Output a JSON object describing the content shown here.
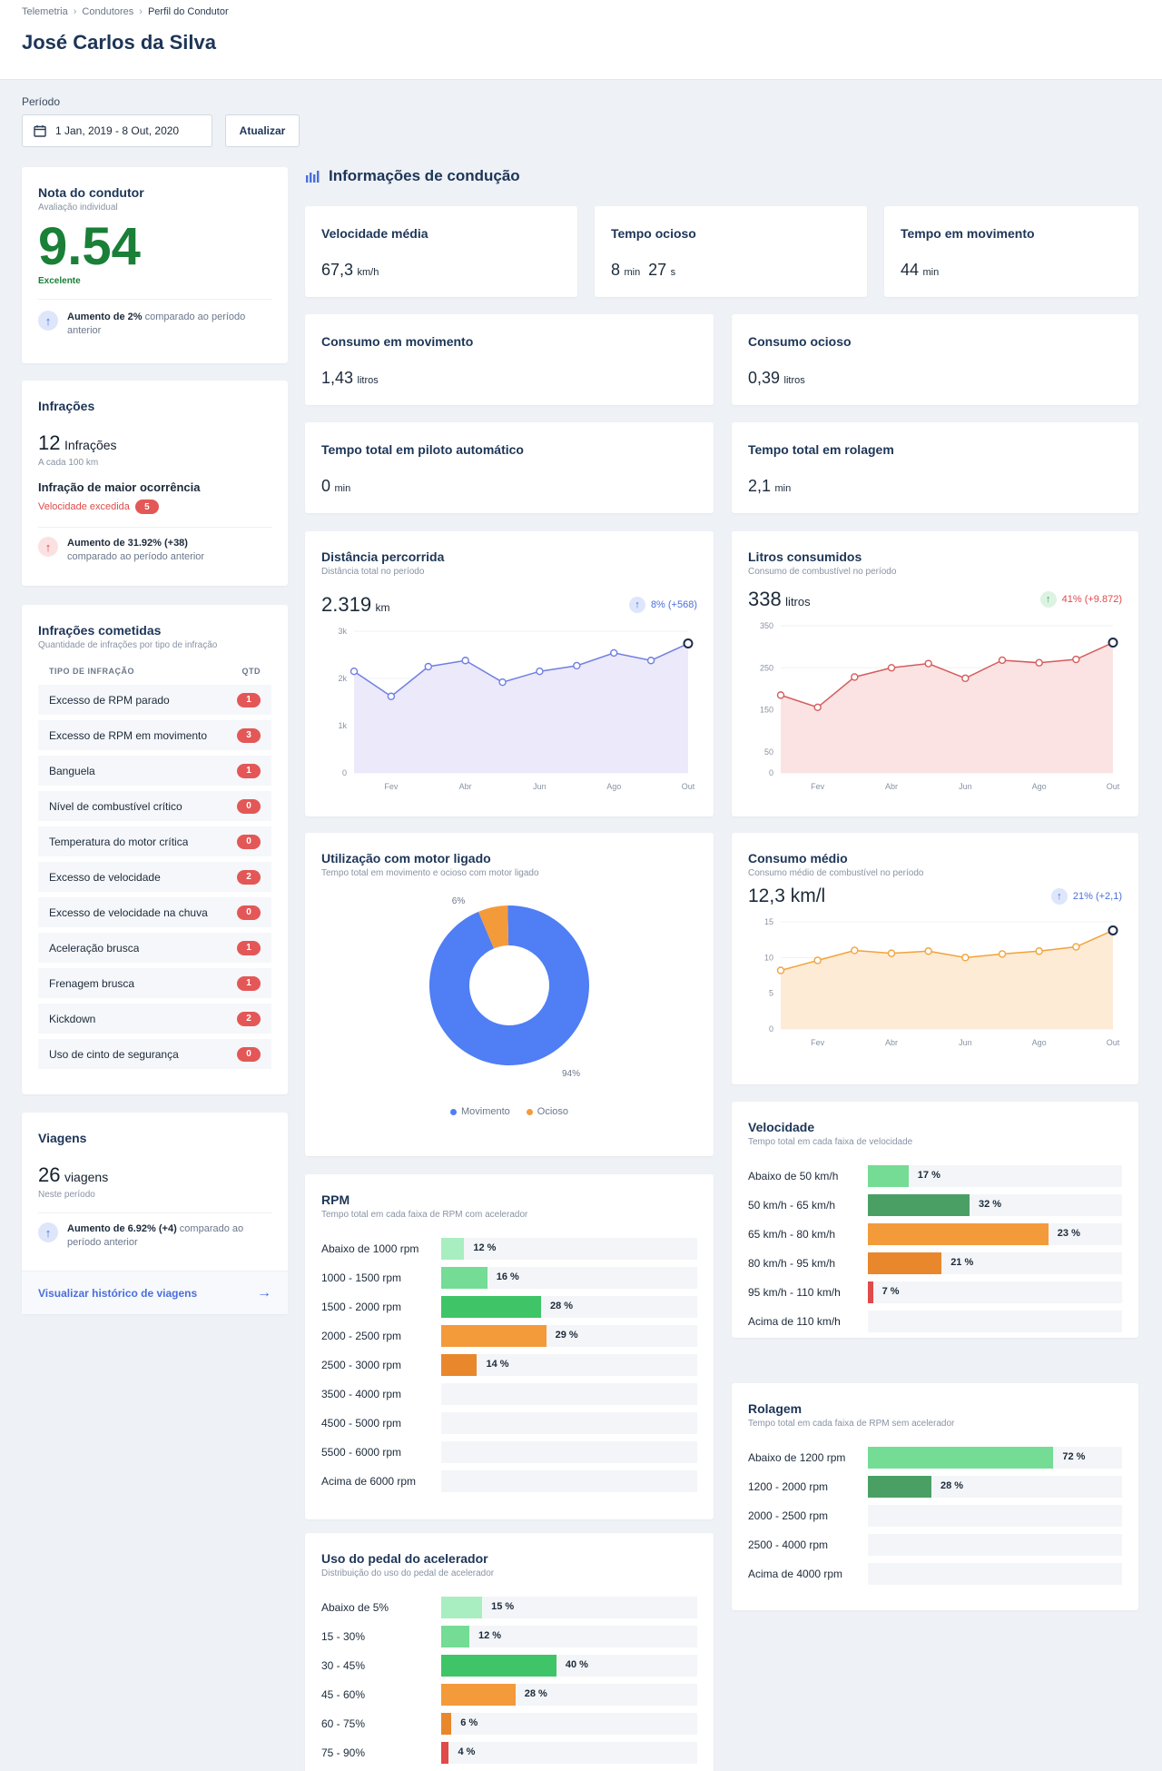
{
  "breadcrumb": [
    "Telemetria",
    "Condutores",
    "Perfil do Condutor"
  ],
  "title": "José Carlos da Silva",
  "period": {
    "label": "Período",
    "value": "1 Jan, 2019 - 8 Out, 2020",
    "update_label": "Atualizar"
  },
  "score": {
    "title": "Nota do condutor",
    "subtitle": "Avaliação individual",
    "value": "9.54",
    "rating": "Excelente",
    "note_bold": "Aumento de 2%",
    "note_rest": "comparado ao período anterior",
    "color": "#1a7f37"
  },
  "infractions": {
    "title": "Infrações",
    "count": "12",
    "unit": "Infrações",
    "per": "A cada 100 km",
    "top_title": "Infração de maior ocorrência",
    "top_name": "Velocidade excedida",
    "top_count": "5",
    "note_bold": "Aumento de 31.92% (+38)",
    "note_rest": "comparado ao período anterior"
  },
  "committed": {
    "title": "Infrações cometidas",
    "subtitle": "Quantidade de infrações por tipo de infração",
    "col_type": "TIPO DE INFRAÇÃO",
    "col_qty": "QTD",
    "rows": [
      {
        "name": "Excesso de RPM parado",
        "qty": "1"
      },
      {
        "name": "Excesso de RPM em movimento",
        "qty": "3"
      },
      {
        "name": "Banguela",
        "qty": "1"
      },
      {
        "name": "Nível de combustível crítico",
        "qty": "0"
      },
      {
        "name": "Temperatura do motor crítica",
        "qty": "0"
      },
      {
        "name": "Excesso de velocidade",
        "qty": "2"
      },
      {
        "name": "Excesso de velocidade na chuva",
        "qty": "0"
      },
      {
        "name": "Aceleração brusca",
        "qty": "1"
      },
      {
        "name": "Frenagem brusca",
        "qty": "1"
      },
      {
        "name": "Kickdown",
        "qty": "2"
      },
      {
        "name": "Uso de cinto de segurança",
        "qty": "0"
      }
    ]
  },
  "trips": {
    "title": "Viagens",
    "count": "26",
    "unit": "viagens",
    "sub": "Neste período",
    "note_bold": "Aumento de 6.92% (+4)",
    "note_rest": "comparado ao período anterior",
    "link": "Visualizar histórico de viagens"
  },
  "driving_info": {
    "title": "Informações de condução",
    "metrics": {
      "avg_speed": {
        "label": "Velocidade média",
        "value": "67,3",
        "unit": "km/h"
      },
      "idle_time": {
        "label": "Tempo ocioso",
        "v1": "8",
        "u1": "min",
        "v2": "27",
        "u2": "s"
      },
      "moving_time": {
        "label": "Tempo em movimento",
        "value": "44",
        "unit": "min"
      },
      "moving_consumption": {
        "label": "Consumo em movimento",
        "value": "1,43",
        "unit": "litros"
      },
      "idle_consumption": {
        "label": "Consumo ocioso",
        "value": "0,39",
        "unit": "litros"
      },
      "autopilot": {
        "label": "Tempo total em piloto automático",
        "value": "0",
        "unit": "min"
      },
      "coasting": {
        "label": "Tempo total em rolagem",
        "value": "2,1",
        "unit": "min"
      }
    }
  },
  "distance": {
    "title": "Distância percorrida",
    "subtitle": "Distância total no período",
    "value": "2.319",
    "unit": "km",
    "trend": "8% (+568)"
  },
  "liters": {
    "title": "Litros consumidos",
    "subtitle": "Consumo de combustível no período",
    "value": "338",
    "unit": "litros",
    "trend": "41% (+9.872)"
  },
  "engine_usage": {
    "title": "Utilização com motor ligado",
    "subtitle": "Tempo total em movimento e ocioso com motor ligado",
    "legend_moving": "Movimento",
    "legend_idle": "Ocioso"
  },
  "avg_consumption": {
    "title": "Consumo médio",
    "subtitle": "Consumo médio de combustível no período",
    "value": "12,3 km/l",
    "trend": "21% (+2,1)"
  },
  "speed_bands": {
    "title": "Velocidade",
    "subtitle": "Tempo total em cada faixa de velocidade"
  },
  "rpm_bands": {
    "title": "RPM",
    "subtitle": "Tempo total em cada faixa de RPM com acelerador"
  },
  "coasting_bands": {
    "title": "Rolagem",
    "subtitle": "Tempo total em cada faixa de RPM sem acelerador"
  },
  "pedal_bands": {
    "title": "Uso do pedal do acelerador",
    "subtitle": "Distribuição do uso do pedal de acelerador"
  },
  "chart_data": [
    {
      "type": "line",
      "name": "distance",
      "x": [
        "Jan",
        "Fev",
        "Mar",
        "Abr",
        "Mai",
        "Jun",
        "Jul",
        "Ago",
        "Set",
        "Out"
      ],
      "x_tick_labels": [
        "Fev",
        "Abr",
        "Jun",
        "Ago",
        "Out"
      ],
      "values": [
        2150,
        1620,
        2250,
        2380,
        1920,
        2150,
        2270,
        2540,
        2380,
        2740
      ],
      "ylim": [
        0,
        3000
      ],
      "y_ticks": [
        "0",
        "1k",
        "2k",
        "3k"
      ],
      "color": "#6f7fe0",
      "fill": "#ece9fb"
    },
    {
      "type": "line",
      "name": "liters",
      "x": [
        "Jan",
        "Fev",
        "Mar",
        "Abr",
        "Mai",
        "Jun",
        "Jul",
        "Ago",
        "Set",
        "Out"
      ],
      "x_tick_labels": [
        "Fev",
        "Abr",
        "Jun",
        "Ago",
        "Out"
      ],
      "values": [
        185,
        156,
        228,
        250,
        260,
        225,
        268,
        262,
        270,
        310
      ],
      "ylim": [
        0,
        350
      ],
      "y_ticks": [
        "0",
        "50",
        "150",
        "250",
        "350"
      ],
      "color": "#d65c5c",
      "fill": "#fbe3e3"
    },
    {
      "type": "pie",
      "name": "engine_usage",
      "labels": [
        "Movimento",
        "Ocioso"
      ],
      "values": [
        94,
        6
      ],
      "value_labels": [
        "94%",
        "6%"
      ],
      "colors": [
        "#4f7ef5",
        "#f39a3b"
      ]
    },
    {
      "type": "line",
      "name": "avg_consumption",
      "x": [
        "Jan",
        "Fev",
        "Mar",
        "Abr",
        "Mai",
        "Jun",
        "Jul",
        "Ago",
        "Set",
        "Out"
      ],
      "x_tick_labels": [
        "Fev",
        "Abr",
        "Jun",
        "Ago",
        "Out"
      ],
      "values": [
        8.2,
        9.6,
        11.0,
        10.6,
        10.9,
        10.0,
        10.5,
        10.9,
        11.5,
        13.8
      ],
      "ylim": [
        0,
        15
      ],
      "y_ticks": [
        "0",
        "5",
        "10",
        "15"
      ],
      "color": "#f2a33a",
      "fill": "#fdebd6"
    },
    {
      "type": "bar",
      "name": "speed_bands",
      "max": 23,
      "categories": [
        "Abaixo de 50 km/h",
        "50 km/h - 65 km/h",
        "65 km/h - 80 km/h",
        "80 km/h - 95 km/h",
        "95 km/h - 110 km/h",
        "Acima de 110 km/h"
      ],
      "values": [
        17,
        32,
        23,
        21,
        7,
        0
      ],
      "fill_fraction": [
        0.16,
        0.4,
        0.71,
        0.29,
        0.02,
        0
      ],
      "value_labels": [
        "17 %",
        "32 %",
        "23 %",
        "21 %",
        "7 %",
        ""
      ],
      "colors": [
        "#74dc95",
        "#4aa064",
        "#f39a3b",
        "#e8872c",
        "#e04a4a",
        "#f3f5f8"
      ]
    },
    {
      "type": "bar",
      "name": "rpm_bands",
      "categories": [
        "Abaixo de 1000 rpm",
        "1000 - 1500 rpm",
        "1500 - 2000 rpm",
        "2000 - 2500 rpm",
        "2500 - 3000 rpm",
        "3500 - 4000 rpm",
        "4500 - 5000 rpm",
        "5500 - 6000 rpm",
        "Acima de 6000 rpm"
      ],
      "values": [
        12,
        16,
        28,
        29,
        14,
        0,
        0,
        0,
        0
      ],
      "fill_fraction": [
        0.09,
        0.18,
        0.39,
        0.41,
        0.14,
        0,
        0,
        0,
        0
      ],
      "value_labels": [
        "12 %",
        "16 %",
        "28 %",
        "29 %",
        "14 %",
        "",
        "",
        "",
        ""
      ],
      "colors": [
        "#a8eec0",
        "#74dc95",
        "#3fc467",
        "#f39a3b",
        "#e8872c",
        "#f3f5f8",
        "#f3f5f8",
        "#f3f5f8",
        "#f3f5f8"
      ]
    },
    {
      "type": "bar",
      "name": "coasting_bands",
      "categories": [
        "Abaixo de 1200 rpm",
        "1200 - 2000 rpm",
        "2000 - 2500 rpm",
        "2500 - 4000 rpm",
        "Acima de 4000 rpm"
      ],
      "values": [
        72,
        28,
        0,
        0,
        0
      ],
      "fill_fraction": [
        0.73,
        0.25,
        0,
        0,
        0
      ],
      "value_labels": [
        "72 %",
        "28 %",
        "",
        "",
        ""
      ],
      "colors": [
        "#74dc95",
        "#4aa064",
        "#f3f5f8",
        "#f3f5f8",
        "#f3f5f8"
      ]
    },
    {
      "type": "bar",
      "name": "pedal_bands",
      "categories": [
        "Abaixo de 5%",
        "15 - 30%",
        "30 - 45%",
        "45 - 60%",
        "60 - 75%",
        "75 - 90%"
      ],
      "values": [
        15,
        12,
        40,
        28,
        6,
        4
      ],
      "fill_fraction": [
        0.16,
        0.11,
        0.45,
        0.29,
        0.04,
        0.03
      ],
      "value_labels": [
        "15 %",
        "12 %",
        "40 %",
        "28 %",
        "6 %",
        "4 %"
      ],
      "colors": [
        "#a8eec0",
        "#74dc95",
        "#3fc467",
        "#f39a3b",
        "#e8872c",
        "#e04a4a"
      ]
    }
  ]
}
